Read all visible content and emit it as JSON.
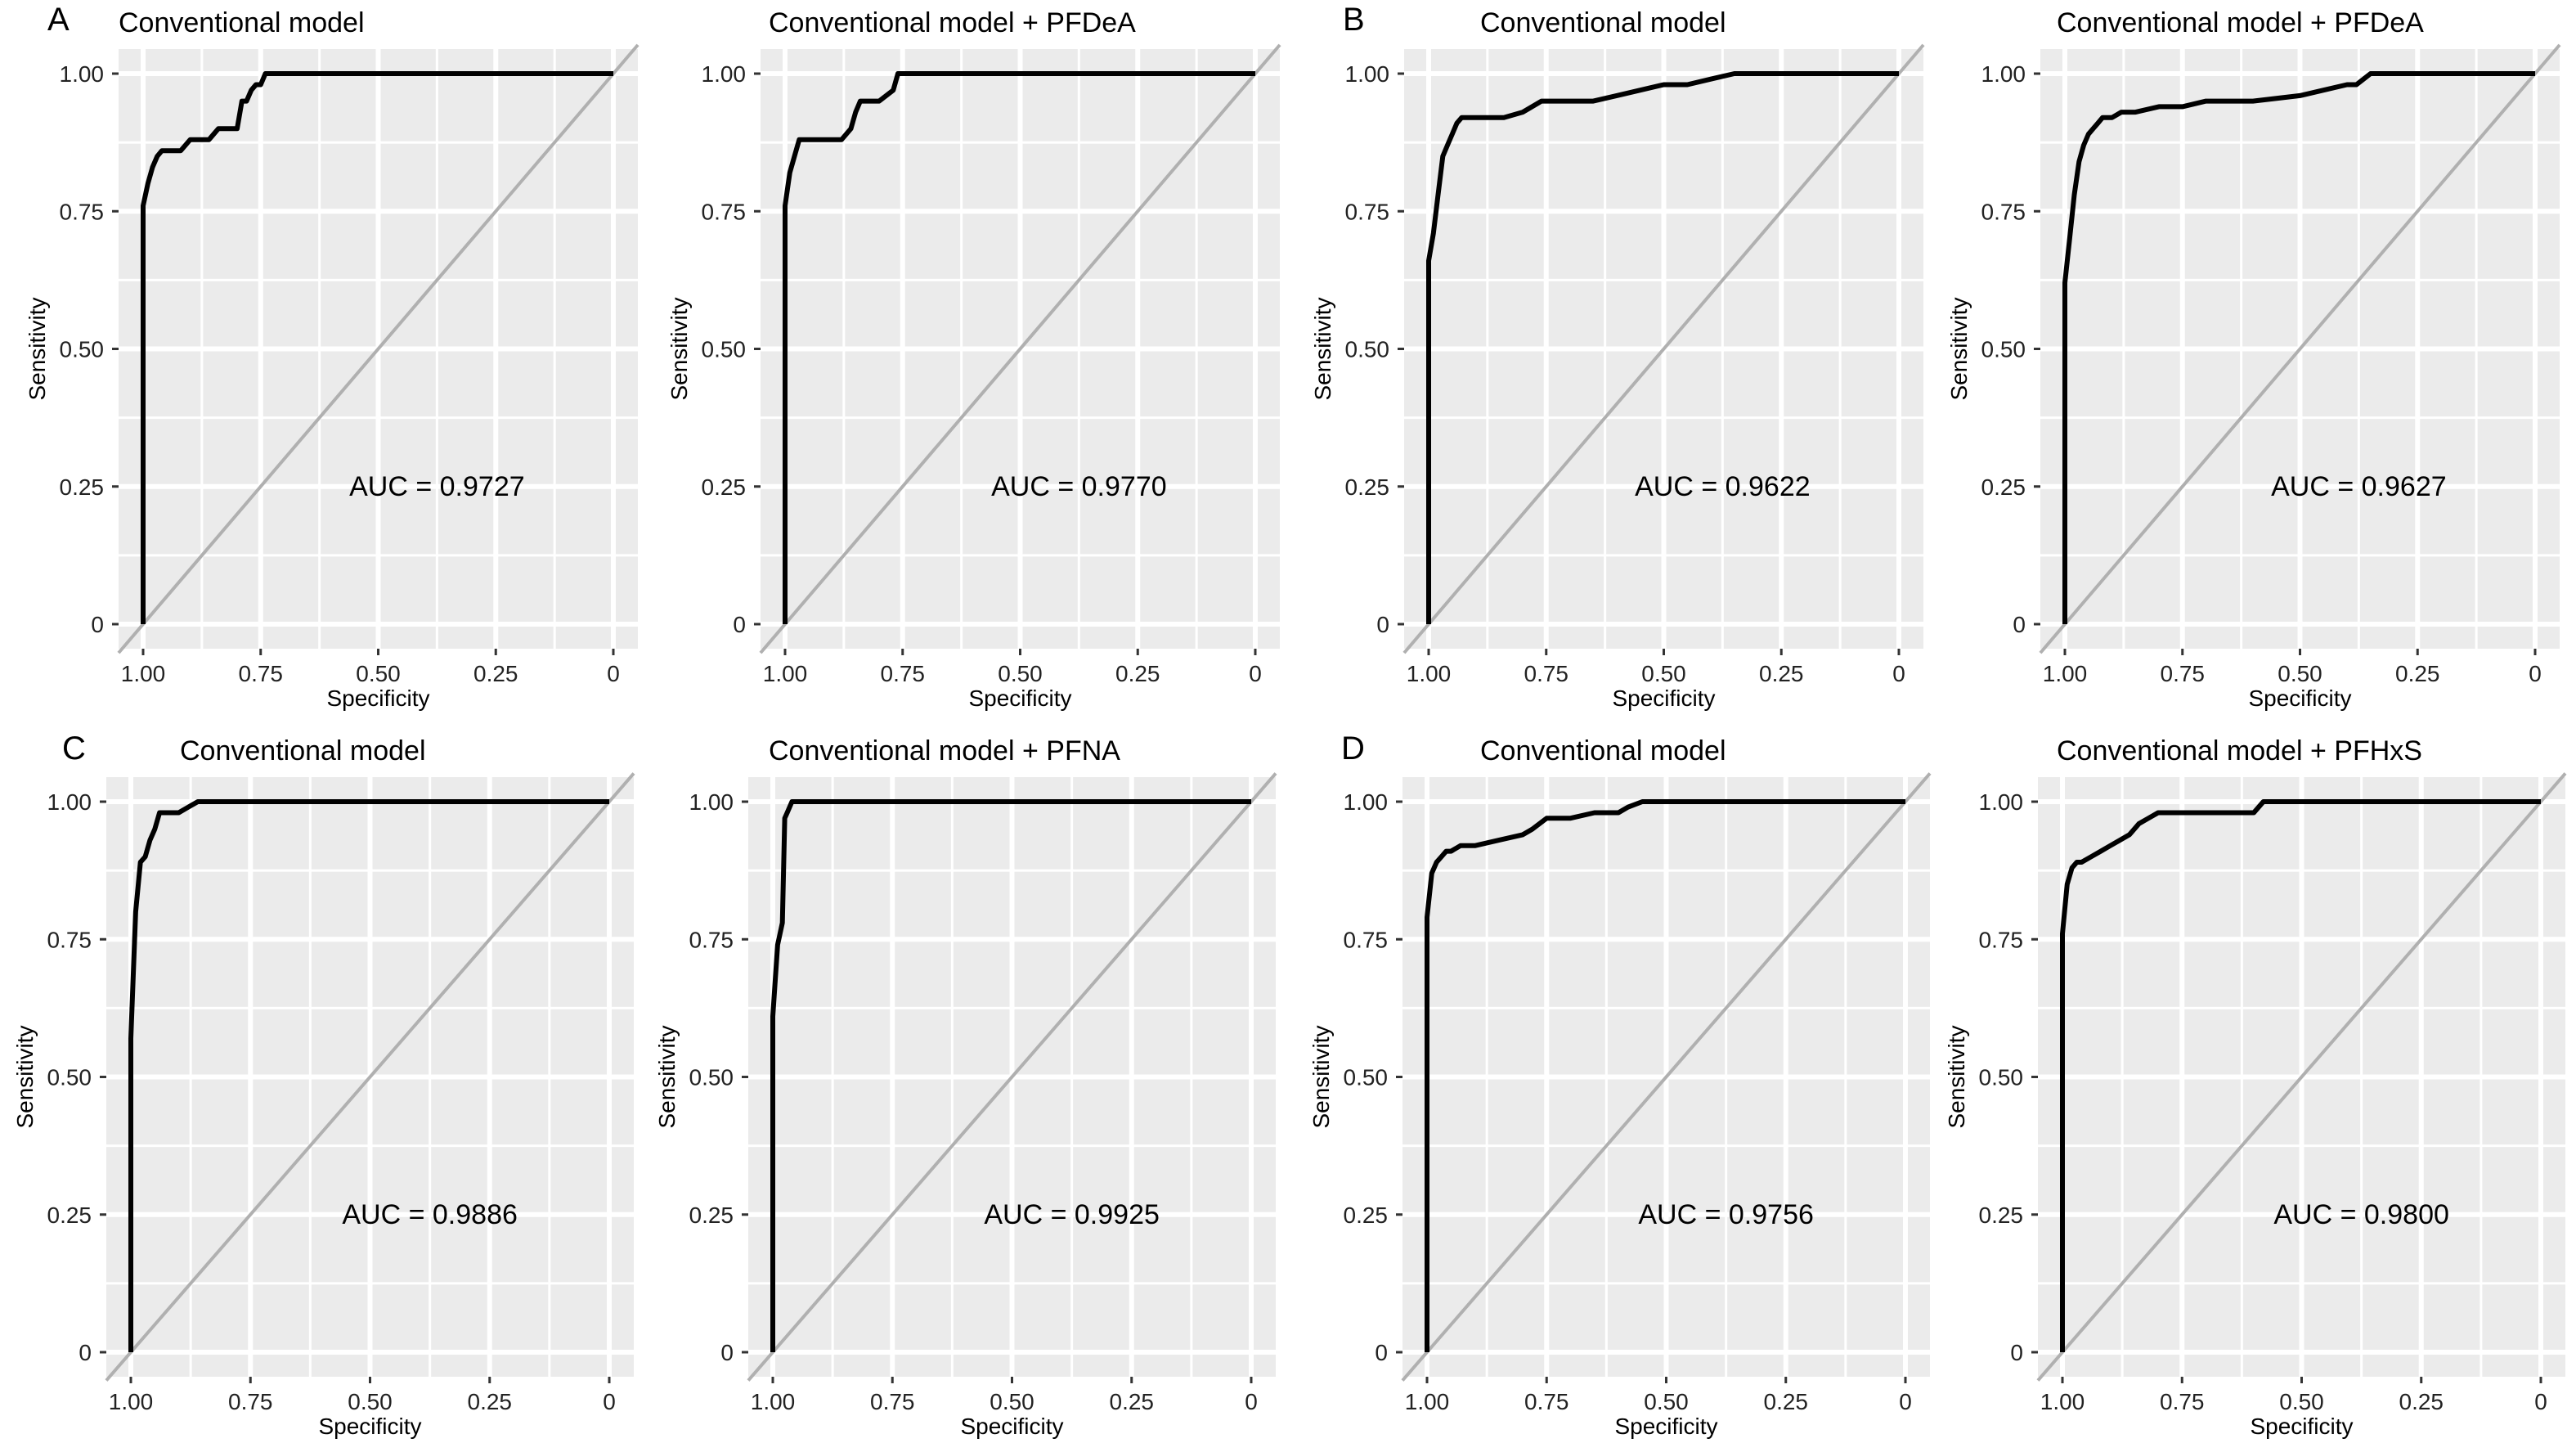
{
  "panel_letters": [
    "A",
    "B",
    "C",
    "D"
  ],
  "chart_data": [
    {
      "type": "line",
      "title": "Conventional model",
      "xlabel": "Specificity",
      "ylabel": "Sensitivity",
      "x_ticks": [
        "1.00",
        "0.75",
        "0.50",
        "0.25",
        "0"
      ],
      "y_ticks": [
        "1.00",
        "0.75",
        "0.50",
        "0.25",
        "0"
      ],
      "xlim": [
        1,
        0
      ],
      "ylim": [
        0,
        1
      ],
      "x_reversed": true,
      "annotation": "AUC = 0.9727",
      "reference_line": "diagonal",
      "grid": true,
      "series": [
        {
          "x": [
            1.0,
            1.0,
            0.99,
            0.98,
            0.97,
            0.96,
            0.94,
            0.92,
            0.9,
            0.88,
            0.86,
            0.85,
            0.84,
            0.82,
            0.8,
            0.79,
            0.78,
            0.77,
            0.76,
            0.75,
            0.74,
            0.5,
            0.25,
            0.0
          ],
          "y": [
            0.0,
            0.76,
            0.8,
            0.83,
            0.85,
            0.86,
            0.86,
            0.86,
            0.88,
            0.88,
            0.88,
            0.89,
            0.9,
            0.9,
            0.9,
            0.95,
            0.95,
            0.97,
            0.98,
            0.98,
            1.0,
            1.0,
            1.0,
            1.0
          ]
        }
      ]
    },
    {
      "type": "line",
      "title": "Conventional model + PFDeA",
      "xlabel": "Specificity",
      "ylabel": "Sensitivity",
      "x_ticks": [
        "1.00",
        "0.75",
        "0.50",
        "0.25",
        "0"
      ],
      "y_ticks": [
        "1.00",
        "0.75",
        "0.50",
        "0.25",
        "0"
      ],
      "xlim": [
        1,
        0
      ],
      "ylim": [
        0,
        1
      ],
      "x_reversed": true,
      "annotation": "AUC = 0.9770",
      "reference_line": "diagonal",
      "grid": true,
      "series": [
        {
          "x": [
            1.0,
            1.0,
            0.99,
            0.98,
            0.97,
            0.96,
            0.94,
            0.92,
            0.88,
            0.86,
            0.85,
            0.84,
            0.82,
            0.8,
            0.77,
            0.76,
            0.74,
            0.5,
            0.25,
            0.0
          ],
          "y": [
            0.0,
            0.76,
            0.82,
            0.85,
            0.88,
            0.88,
            0.88,
            0.88,
            0.88,
            0.9,
            0.93,
            0.95,
            0.95,
            0.95,
            0.97,
            1.0,
            1.0,
            1.0,
            1.0,
            1.0
          ]
        }
      ]
    },
    {
      "type": "line",
      "title": "Conventional model",
      "xlabel": "Specificity",
      "ylabel": "Sensitivity",
      "x_ticks": [
        "1.00",
        "0.75",
        "0.50",
        "0.25",
        "0"
      ],
      "y_ticks": [
        "1.00",
        "0.75",
        "0.50",
        "0.25",
        "0"
      ],
      "xlim": [
        1,
        0
      ],
      "ylim": [
        0,
        1
      ],
      "x_reversed": true,
      "annotation": "AUC = 0.9622",
      "reference_line": "diagonal",
      "grid": true,
      "series": [
        {
          "x": [
            1.0,
            1.0,
            0.99,
            0.98,
            0.97,
            0.96,
            0.95,
            0.94,
            0.93,
            0.92,
            0.9,
            0.88,
            0.84,
            0.8,
            0.78,
            0.76,
            0.72,
            0.65,
            0.6,
            0.55,
            0.5,
            0.45,
            0.4,
            0.35,
            0.2,
            0.0
          ],
          "y": [
            0.0,
            0.66,
            0.71,
            0.78,
            0.85,
            0.87,
            0.89,
            0.91,
            0.92,
            0.92,
            0.92,
            0.92,
            0.92,
            0.93,
            0.94,
            0.95,
            0.95,
            0.95,
            0.96,
            0.97,
            0.98,
            0.98,
            0.99,
            1.0,
            1.0,
            1.0
          ]
        }
      ]
    },
    {
      "type": "line",
      "title": "Conventional model + PFDeA",
      "xlabel": "Specificity",
      "ylabel": "Sensitivity",
      "x_ticks": [
        "1.00",
        "0.75",
        "0.50",
        "0.25",
        "0"
      ],
      "y_ticks": [
        "1.00",
        "0.75",
        "0.50",
        "0.25",
        "0"
      ],
      "xlim": [
        1,
        0
      ],
      "ylim": [
        0,
        1
      ],
      "x_reversed": true,
      "annotation": "AUC = 0.9627",
      "reference_line": "diagonal",
      "grid": true,
      "series": [
        {
          "x": [
            1.0,
            1.0,
            0.99,
            0.98,
            0.97,
            0.96,
            0.95,
            0.94,
            0.93,
            0.92,
            0.9,
            0.88,
            0.85,
            0.8,
            0.75,
            0.7,
            0.6,
            0.5,
            0.45,
            0.4,
            0.38,
            0.35,
            0.2,
            0.0
          ],
          "y": [
            0.0,
            0.62,
            0.7,
            0.78,
            0.84,
            0.87,
            0.89,
            0.9,
            0.91,
            0.92,
            0.92,
            0.93,
            0.93,
            0.94,
            0.94,
            0.95,
            0.95,
            0.96,
            0.97,
            0.98,
            0.98,
            1.0,
            1.0,
            1.0
          ]
        }
      ]
    },
    {
      "type": "line",
      "title": "Conventional model",
      "xlabel": "Specificity",
      "ylabel": "Sensitivity",
      "x_ticks": [
        "1.00",
        "0.75",
        "0.50",
        "0.25",
        "0"
      ],
      "y_ticks": [
        "1.00",
        "0.75",
        "0.50",
        "0.25",
        "0"
      ],
      "xlim": [
        1,
        0
      ],
      "ylim": [
        0,
        1
      ],
      "x_reversed": true,
      "annotation": "AUC = 0.9886",
      "reference_line": "diagonal",
      "grid": true,
      "series": [
        {
          "x": [
            1.0,
            1.0,
            0.99,
            0.98,
            0.97,
            0.96,
            0.95,
            0.94,
            0.93,
            0.92,
            0.9,
            0.88,
            0.86,
            0.5,
            0.25,
            0.0
          ],
          "y": [
            0.0,
            0.57,
            0.8,
            0.89,
            0.9,
            0.93,
            0.95,
            0.98,
            0.98,
            0.98,
            0.98,
            0.99,
            1.0,
            1.0,
            1.0,
            1.0
          ]
        }
      ]
    },
    {
      "type": "line",
      "title": "Conventional model + PFNA",
      "xlabel": "Specificity",
      "ylabel": "Sensitivity",
      "x_ticks": [
        "1.00",
        "0.75",
        "0.50",
        "0.25",
        "0"
      ],
      "y_ticks": [
        "1.00",
        "0.75",
        "0.50",
        "0.25",
        "0"
      ],
      "xlim": [
        1,
        0
      ],
      "ylim": [
        0,
        1
      ],
      "x_reversed": true,
      "annotation": "AUC = 0.9925",
      "reference_line": "diagonal",
      "grid": true,
      "series": [
        {
          "x": [
            1.0,
            1.0,
            0.99,
            0.98,
            0.975,
            0.97,
            0.96,
            0.5,
            0.25,
            0.0
          ],
          "y": [
            0.0,
            0.61,
            0.74,
            0.78,
            0.97,
            0.98,
            1.0,
            1.0,
            1.0,
            1.0
          ]
        }
      ]
    },
    {
      "type": "line",
      "title": "Conventional model",
      "xlabel": "Specificity",
      "ylabel": "Sensitivity",
      "x_ticks": [
        "1.00",
        "0.75",
        "0.50",
        "0.25",
        "0"
      ],
      "y_ticks": [
        "1.00",
        "0.75",
        "0.50",
        "0.25",
        "0"
      ],
      "xlim": [
        1,
        0
      ],
      "ylim": [
        0,
        1
      ],
      "x_reversed": true,
      "annotation": "AUC = 0.9756",
      "reference_line": "diagonal",
      "grid": true,
      "series": [
        {
          "x": [
            1.0,
            1.0,
            0.99,
            0.98,
            0.97,
            0.96,
            0.95,
            0.93,
            0.9,
            0.85,
            0.8,
            0.78,
            0.75,
            0.7,
            0.65,
            0.6,
            0.58,
            0.55,
            0.3,
            0.0
          ],
          "y": [
            0.0,
            0.79,
            0.87,
            0.89,
            0.9,
            0.91,
            0.91,
            0.92,
            0.92,
            0.93,
            0.94,
            0.95,
            0.97,
            0.97,
            0.98,
            0.98,
            0.99,
            1.0,
            1.0,
            1.0
          ]
        }
      ]
    },
    {
      "type": "line",
      "title": "Conventional model + PFHxS",
      "xlabel": "Specificity",
      "ylabel": "Sensitivity",
      "x_ticks": [
        "1.00",
        "0.75",
        "0.50",
        "0.25",
        "0"
      ],
      "y_ticks": [
        "1.00",
        "0.75",
        "0.50",
        "0.25",
        "0"
      ],
      "xlim": [
        1,
        0
      ],
      "ylim": [
        0,
        1
      ],
      "x_reversed": true,
      "annotation": "AUC = 0.9800",
      "reference_line": "diagonal",
      "grid": true,
      "series": [
        {
          "x": [
            1.0,
            1.0,
            0.99,
            0.98,
            0.97,
            0.96,
            0.94,
            0.92,
            0.9,
            0.88,
            0.86,
            0.84,
            0.82,
            0.8,
            0.75,
            0.7,
            0.6,
            0.58,
            0.55,
            0.3,
            0.0
          ],
          "y": [
            0.0,
            0.76,
            0.85,
            0.88,
            0.89,
            0.89,
            0.9,
            0.91,
            0.92,
            0.93,
            0.94,
            0.96,
            0.97,
            0.98,
            0.98,
            0.98,
            0.98,
            1.0,
            1.0,
            1.0,
            1.0
          ]
        }
      ]
    }
  ]
}
